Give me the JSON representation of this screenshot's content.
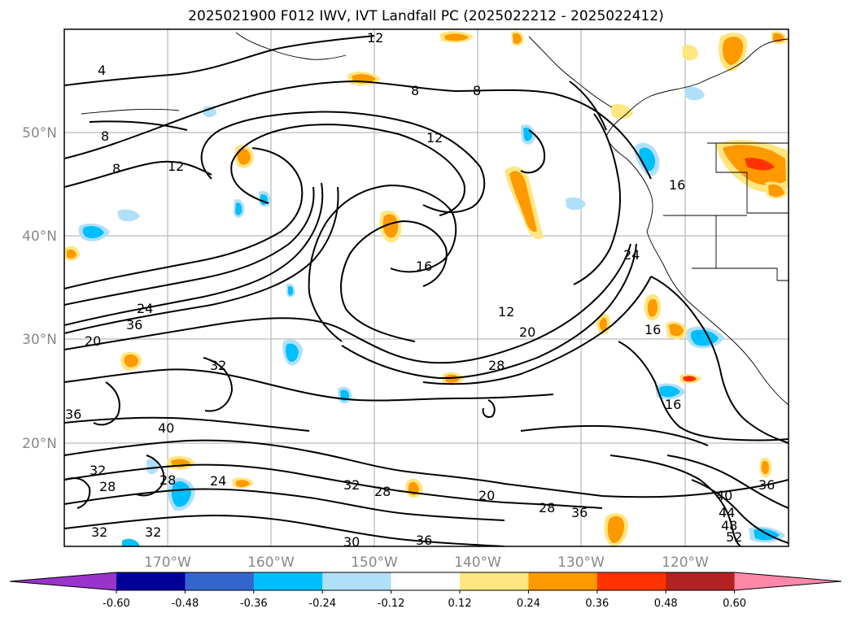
{
  "title": "2025021900 F012 IWV, IVT Landfall PC (2025022212 - 2025022412)",
  "map": {
    "region": "North Pacific Ocean and western North America",
    "lon_labels": [
      "170°W",
      "160°W",
      "150°W",
      "140°W",
      "130°W",
      "120°W"
    ],
    "lat_labels": [
      "50°N",
      "40°N",
      "30°N",
      "20°N"
    ],
    "grid": true,
    "contour_color": "#000000",
    "contour_labels": [
      "4",
      "8",
      "8",
      "8",
      "8",
      "12",
      "12",
      "12",
      "12",
      "16",
      "16",
      "16",
      "16",
      "20",
      "20",
      "20",
      "24",
      "24",
      "24",
      "28",
      "28",
      "28",
      "28",
      "28",
      "32",
      "32",
      "32",
      "32",
      "32",
      "36",
      "36",
      "36",
      "36",
      "36",
      "40",
      "40",
      "44",
      "48",
      "52",
      "30"
    ]
  },
  "colorbar": {
    "orientation": "horizontal",
    "extend": "both",
    "ticks": [
      "-0.60",
      "-0.48",
      "-0.36",
      "-0.24",
      "-0.12",
      "0.12",
      "0.24",
      "0.36",
      "0.48",
      "0.60"
    ],
    "colors": [
      "#9933cc",
      "#000099",
      "#3366cc",
      "#00bfff",
      "#b0e0f8",
      "#ffffff",
      "#ffe680",
      "#ff9900",
      "#ff3300",
      "#b22222",
      "#ff88aa"
    ]
  }
}
